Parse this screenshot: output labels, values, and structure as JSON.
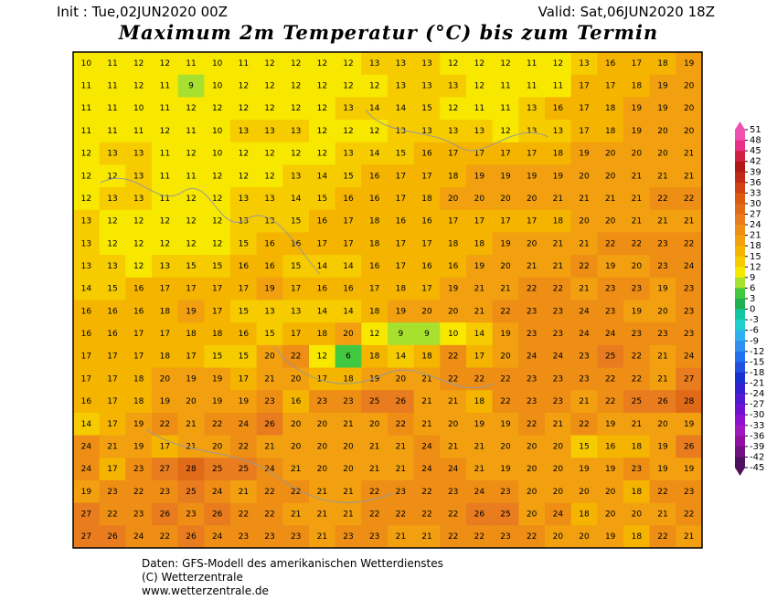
{
  "header": {
    "init": "Init : Tue,02JUN2020 00Z",
    "valid": "Valid: Sat,06JUN2020 18Z",
    "title": "Maximum 2m Temperatur (°C) bis zum Termin"
  },
  "map": {
    "rows": [
      [
        10,
        11,
        12,
        12,
        11,
        10,
        11,
        12,
        12,
        12,
        12,
        13,
        13,
        13,
        12,
        12,
        12,
        11,
        12,
        13,
        16,
        17,
        18,
        19
      ],
      [
        11,
        11,
        12,
        11,
        9,
        10,
        12,
        12,
        12,
        12,
        12,
        12,
        13,
        13,
        13,
        12,
        11,
        11,
        11,
        17,
        17,
        18,
        19,
        20
      ],
      [
        11,
        11,
        10,
        11,
        12,
        12,
        12,
        12,
        12,
        12,
        13,
        14,
        14,
        15,
        12,
        11,
        11,
        13,
        16,
        17,
        18,
        19,
        19,
        20
      ],
      [
        11,
        11,
        11,
        12,
        11,
        10,
        13,
        13,
        13,
        12,
        12,
        12,
        13,
        13,
        13,
        13,
        12,
        13,
        13,
        17,
        18,
        19,
        20,
        20
      ],
      [
        12,
        13,
        13,
        11,
        12,
        10,
        12,
        12,
        12,
        12,
        13,
        14,
        15,
        16,
        17,
        17,
        17,
        17,
        18,
        19,
        20,
        20,
        20,
        21
      ],
      [
        12,
        12,
        13,
        11,
        11,
        12,
        12,
        12,
        13,
        14,
        15,
        16,
        17,
        17,
        18,
        19,
        19,
        19,
        19,
        20,
        20,
        21,
        21,
        21
      ],
      [
        12,
        13,
        13,
        11,
        12,
        12,
        13,
        13,
        14,
        15,
        16,
        16,
        17,
        18,
        20,
        20,
        20,
        20,
        21,
        21,
        21,
        21,
        22,
        22
      ],
      [
        13,
        12,
        12,
        12,
        12,
        12,
        13,
        13,
        15,
        16,
        17,
        18,
        16,
        16,
        17,
        17,
        17,
        17,
        18,
        20,
        20,
        21,
        21,
        21
      ],
      [
        13,
        12,
        12,
        12,
        12,
        12,
        15,
        16,
        16,
        17,
        17,
        18,
        17,
        17,
        18,
        18,
        19,
        20,
        21,
        21,
        22,
        22,
        23,
        22
      ],
      [
        13,
        13,
        12,
        13,
        15,
        15,
        16,
        16,
        15,
        14,
        14,
        16,
        17,
        16,
        16,
        19,
        20,
        21,
        21,
        22,
        19,
        20,
        23,
        24
      ],
      [
        14,
        15,
        16,
        17,
        17,
        17,
        17,
        19,
        17,
        16,
        16,
        17,
        18,
        17,
        19,
        21,
        21,
        22,
        22,
        21,
        23,
        23,
        19,
        23
      ],
      [
        16,
        16,
        16,
        18,
        19,
        17,
        15,
        13,
        13,
        14,
        14,
        18,
        19,
        20,
        20,
        21,
        22,
        23,
        23,
        24,
        23,
        19,
        20,
        23
      ],
      [
        16,
        16,
        17,
        17,
        18,
        18,
        16,
        15,
        17,
        18,
        20,
        12,
        9,
        9,
        10,
        14,
        19,
        23,
        23,
        24,
        24,
        23,
        23,
        23
      ],
      [
        17,
        17,
        17,
        18,
        17,
        15,
        15,
        20,
        22,
        12,
        6,
        18,
        14,
        18,
        22,
        17,
        20,
        24,
        24,
        23,
        25,
        22,
        21,
        24
      ],
      [
        17,
        17,
        18,
        20,
        19,
        19,
        17,
        21,
        20,
        17,
        18,
        19,
        20,
        21,
        22,
        22,
        22,
        23,
        23,
        23,
        22,
        22,
        21,
        27
      ],
      [
        16,
        17,
        18,
        19,
        20,
        19,
        19,
        23,
        16,
        23,
        23,
        25,
        26,
        21,
        21,
        18,
        22,
        23,
        23,
        21,
        22,
        25,
        26,
        28
      ],
      [
        14,
        17,
        19,
        22,
        21,
        22,
        24,
        26,
        20,
        20,
        21,
        20,
        22,
        21,
        20,
        19,
        19,
        22,
        21,
        22,
        19,
        21,
        20,
        19
      ],
      [
        24,
        21,
        19,
        17,
        21,
        20,
        22,
        21,
        20,
        20,
        20,
        21,
        21,
        24,
        21,
        21,
        20,
        20,
        20,
        15,
        16,
        18,
        19,
        26
      ],
      [
        24,
        17,
        23,
        27,
        28,
        25,
        25,
        24,
        21,
        20,
        20,
        21,
        21,
        24,
        24,
        21,
        19,
        20,
        20,
        19,
        19,
        23,
        19,
        19
      ],
      [
        19,
        23,
        22,
        23,
        25,
        24,
        21,
        22,
        22,
        21,
        21,
        22,
        23,
        22,
        23,
        24,
        23,
        20,
        20,
        20,
        20,
        18,
        22,
        23
      ],
      [
        27,
        22,
        23,
        26,
        23,
        26,
        22,
        22,
        21,
        21,
        21,
        22,
        22,
        22,
        22,
        26,
        25,
        20,
        24,
        18,
        20,
        20,
        21,
        22
      ],
      [
        27,
        26,
        24,
        22,
        26,
        24,
        23,
        23,
        23,
        21,
        23,
        23,
        21,
        21,
        22,
        22,
        23,
        22,
        20,
        20,
        19,
        18,
        22,
        21
      ]
    ]
  },
  "colorbar": {
    "labels": [
      51,
      48,
      45,
      42,
      39,
      36,
      33,
      30,
      27,
      24,
      21,
      18,
      15,
      12,
      9,
      6,
      3,
      0,
      -3,
      -6,
      -9,
      -12,
      -15,
      -18,
      -21,
      -24,
      -27,
      -30,
      -33,
      -36,
      -39,
      -42,
      -45
    ],
    "colors": [
      "#f050b0",
      "#e8308a",
      "#d02040",
      "#b01818",
      "#c02818",
      "#d04010",
      "#dc5a10",
      "#e06a18",
      "#e87c1e",
      "#ee8e14",
      "#f2a010",
      "#f4b400",
      "#f6cc00",
      "#f8e800",
      "#a8e030",
      "#40c840",
      "#20b050",
      "#10c8a0",
      "#20d0d0",
      "#30b0f0",
      "#3090f0",
      "#2070f0",
      "#2050e0",
      "#1830d0",
      "#3020d0",
      "#5018d0",
      "#7010d0",
      "#9010d0",
      "#a018c0",
      "#9010a0",
      "#701080",
      "#501060"
    ]
  },
  "footer": {
    "line1": "Daten: GFS-Modell des amerikanischen Wetterdienstes",
    "line2": "(C) Wetterzentrale",
    "line3": "www.wetterzentrale.de"
  }
}
